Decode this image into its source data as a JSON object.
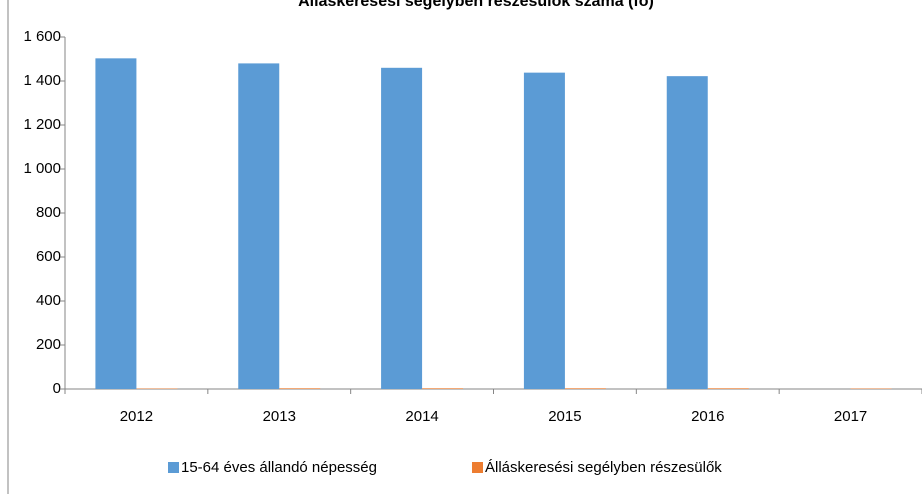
{
  "chart_data": {
    "type": "bar",
    "title": "Álláskeresési segélyben részesülők száma (fő)",
    "categories": [
      "2012",
      "2013",
      "2014",
      "2015",
      "2016",
      "2017"
    ],
    "series": [
      {
        "name": "15-64 éves állandó népesség",
        "color": "#5b9bd5",
        "values": [
          1503,
          1480,
          1460,
          1438,
          1422,
          null
        ]
      },
      {
        "name": "Álláskeresési segélyben részesülők",
        "color": "#ed7d31",
        "values": [
          2,
          3,
          3,
          3,
          3,
          2
        ]
      }
    ],
    "ylim": [
      0,
      1600
    ],
    "yticks": [
      0,
      200,
      400,
      600,
      800,
      {
        "value": 1000,
        "label": "1 000"
      },
      {
        "value": 1200,
        "label": "1 200"
      },
      {
        "value": 1400,
        "label": "1 400"
      },
      {
        "value": 1600,
        "label": "1 600"
      }
    ],
    "grid": false,
    "legend": "bottom"
  }
}
